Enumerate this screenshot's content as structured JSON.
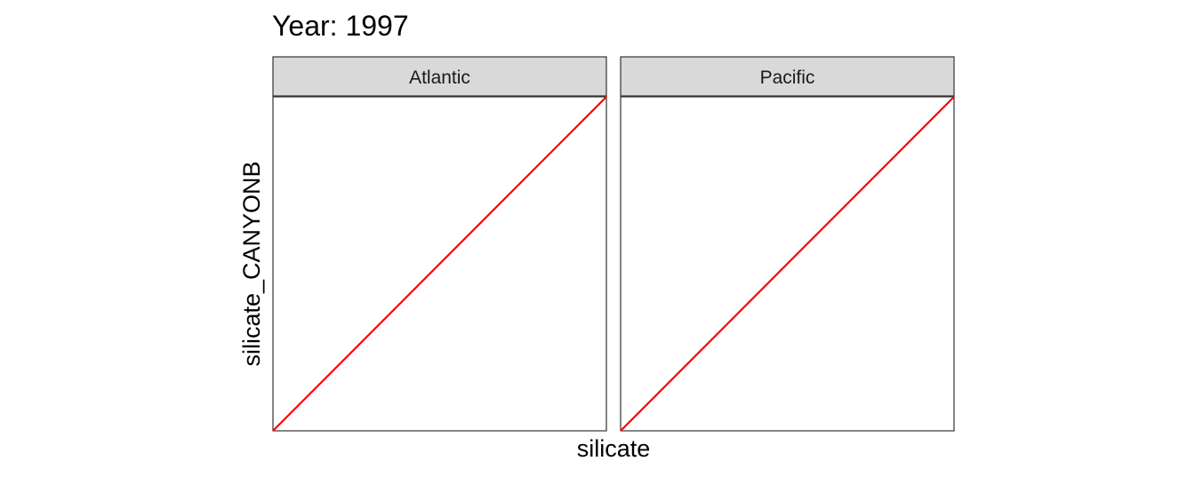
{
  "chart_data": {
    "type": "line",
    "title": "Year: 1997",
    "xlabel": "silicate",
    "ylabel": "silicate_CANYONB",
    "grid": false,
    "panels": [
      {
        "name": "Atlantic",
        "series": [
          {
            "kind": "identity-line",
            "color": "#ff0000",
            "x": [
              0,
              1
            ],
            "y": [
              0,
              1
            ]
          }
        ]
      },
      {
        "name": "Pacific",
        "series": [
          {
            "kind": "identity-line",
            "color": "#ff0000",
            "x": [
              0,
              1
            ],
            "y": [
              0,
              1
            ]
          }
        ]
      }
    ],
    "xlim": [
      0,
      1
    ],
    "ylim": [
      0,
      1
    ],
    "colors": {
      "line": "#ff0000",
      "strip_fill": "#d9d9d9",
      "panel_border": "#333333",
      "background": "#ffffff"
    }
  }
}
